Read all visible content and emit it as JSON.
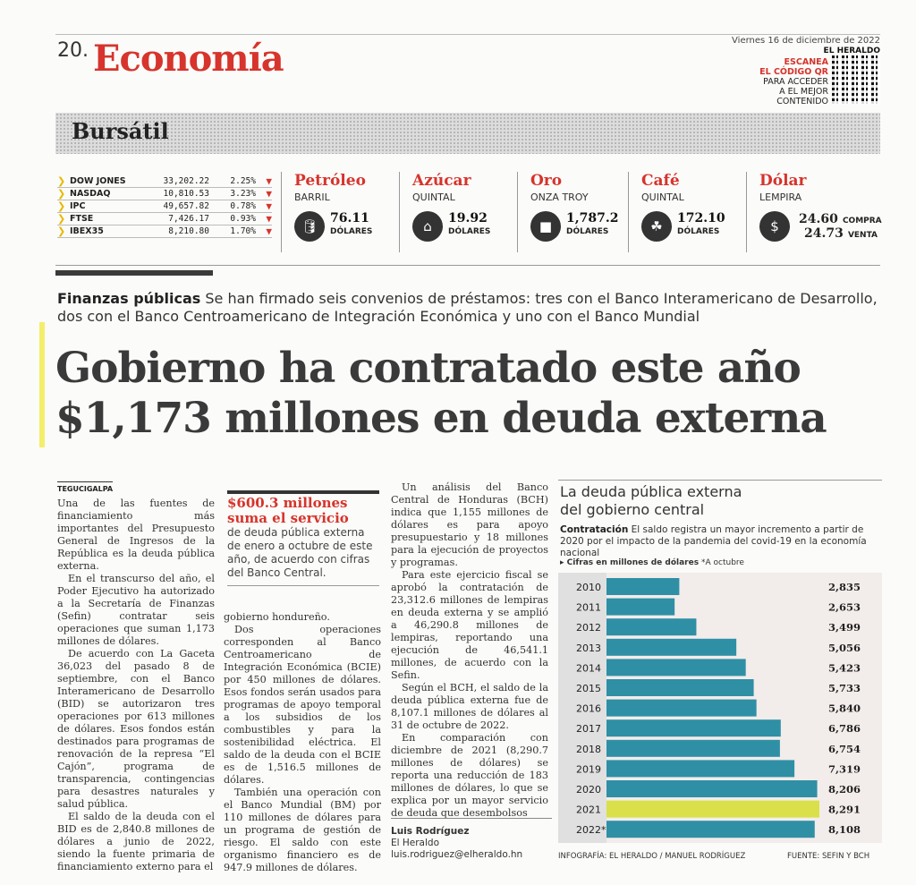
{
  "header": {
    "page_number": "20.",
    "section": "Economía",
    "date": "Viernes 16 de diciembre de 2022",
    "paper": "EL HERALDO",
    "qr_line1": "ESCANEA",
    "qr_line2": "EL CÓDIGO QR",
    "qr_line3": "PARA ACCEDER",
    "qr_line4": "A EL MEJOR",
    "qr_line5": "CONTENIDO"
  },
  "bursatil": {
    "title": "Bursátil",
    "stocks": [
      {
        "name": "DOW JONES",
        "value": "33,202.22",
        "pct": "2.25%"
      },
      {
        "name": "NASDAQ",
        "value": "10,810.53",
        "pct": "3.23%"
      },
      {
        "name": "IPC",
        "value": "49,657.82",
        "pct": "0.78%"
      },
      {
        "name": "FTSE",
        "value": "7,426.17",
        "pct": "0.93%"
      },
      {
        "name": "IBEX35",
        "value": "8,210.80",
        "pct": "1.70%"
      }
    ],
    "commodities": [
      {
        "name": "Petróleo",
        "unit": "BARRIL",
        "price": "76.11",
        "currency": "DÓLARES",
        "icon": "oil-icon"
      },
      {
        "name": "Azúcar",
        "unit": "QUINTAL",
        "price": "19.92",
        "currency": "DÓLARES",
        "icon": "sugar-icon"
      },
      {
        "name": "Oro",
        "unit": "ONZA TROY",
        "price": "1,787.2",
        "currency": "DÓLARES",
        "icon": "gold-icon"
      },
      {
        "name": "Café",
        "unit": "QUINTAL",
        "price": "172.10",
        "currency": "DÓLARES",
        "icon": "coffee-icon"
      }
    ],
    "dolar": {
      "name": "Dólar",
      "unit": "LEMPIRA",
      "buy": "24.60",
      "buy_label": "COMPRA",
      "sell": "24.73",
      "sell_label": "VENTA",
      "icon": "dollar-icon"
    }
  },
  "article": {
    "kicker_bold": "Finanzas públicas",
    "kicker_text": "Se han firmado seis convenios de préstamos: tres con el Banco Interamericano de Desarrollo, dos con el Banco Centroamericano de Integración Económica y uno con el Banco Mundial",
    "headline_line1": "Gobierno ha contratado este año",
    "headline_line2": "$1,173 millones en deuda externa",
    "dateline": "TEGUCIGALPA",
    "col1": [
      "Una de las fuentes de financiamiento más importantes del Presupuesto General de Ingresos de la República es la deuda pública externa.",
      "En el transcurso del año, el Poder Ejecutivo ha autorizado a la Secretaría de Finanzas (Sefin) contratar seis operaciones que suman 1,173 millones de dólares.",
      "De acuerdo con La Gaceta 36,023 del pasado 8 de septiembre, con el Banco Interamericano de Desarrollo (BID) se autorizaron tres operaciones por 613 millones de dólares. Esos fondos están destinados para programas de renovación de la represa “El Cajón”, programa de transparencia, contingencias para desastres naturales y salud pública.",
      "El saldo de la deuda con el BID es de 2,840.8 millones de dólares a junio de 2022, siendo la fuente primaria de financiamiento externo para el"
    ],
    "pull_title": "$600.3 millones suma el servicio",
    "pull_text": "de deuda pública externa de enero a octubre de este año, de acuerdo con cifras del Banco Central.",
    "col2": [
      "gobierno hondureño.",
      "Dos operaciones corresponden al Banco Centroamericano de Integración Económica (BCIE) por 450 millones de dólares. Esos fondos serán usados para programas de apoyo temporal a los subsidios de los combustibles y para la sostenibilidad eléctrica. El saldo de la deuda con el BCIE es de 1,516.5 millones de dólares.",
      "También una operación con el Banco Mundial (BM) por 110 millones de dólares para un programa de gestión de riesgo. El saldo con este organismo financiero es de 947.9 millones de dólares."
    ],
    "col3": [
      "Un análisis del Banco Central de Honduras (BCH) indica que 1,155 millones de dólares es para apoyo presupuestario y 18 millones para la ejecución de proyectos y programas.",
      "Para este ejercicio fiscal se aprobó la contratación de 23,312.6 millones de lempiras en deuda externa y se amplió a 46,290.8 millones de lempiras, reportando una ejecución de 46,541.1 millones, de acuerdo con la Sefin.",
      "Según el BCH, el saldo de la deuda pública externa fue de 8,107.1 millones de dólares al 31 de octubre de 2022.",
      "En comparación con diciembre de 2021 (8,290.7 millones de dólares) se reporta una reducción de 183 millones de dólares, lo que se explica por un mayor servicio de deuda que desembolsos"
    ],
    "byline_name": "Luis Rodríguez",
    "byline_org": "El Heraldo",
    "byline_email": "luis.rodriguez@elheraldo.hn"
  },
  "infographic": {
    "title_line1": "La deuda pública externa",
    "title_line2": "del gobierno central",
    "sub_bold": "Contratación",
    "sub_text": "El saldo registra un mayor incremento a partir de 2020 por el impacto de la pandemia del covid-19 en la economía nacional",
    "note_units": "▸ Cifras en millones de dólares",
    "note_oct": "*A octubre",
    "credit_left": "INFOGRAFÍA: EL HERALDO / MANUEL RODRÍGUEZ",
    "credit_right": "FUENTE: SEFIN Y BCH"
  },
  "chart_data": {
    "type": "bar",
    "orientation": "horizontal",
    "categories": [
      "2010",
      "2011",
      "2012",
      "2013",
      "2014",
      "2015",
      "2016",
      "2017",
      "2018",
      "2019",
      "2020",
      "2021",
      "2022*"
    ],
    "values": [
      2835,
      2653,
      3499,
      5056,
      5423,
      5733,
      5840,
      6786,
      6754,
      7319,
      8206,
      8291,
      8108
    ],
    "labels": [
      "2,835",
      "2,653",
      "3,499",
      "5,056",
      "5,423",
      "5,733",
      "5,840",
      "6,786",
      "6,754",
      "7,319",
      "8,206",
      "8,291",
      "8,108"
    ],
    "highlight_index": 11,
    "xlim": [
      0,
      8291
    ],
    "bar_color": "#2f8fa5",
    "highlight_color": "#d9e04a"
  }
}
